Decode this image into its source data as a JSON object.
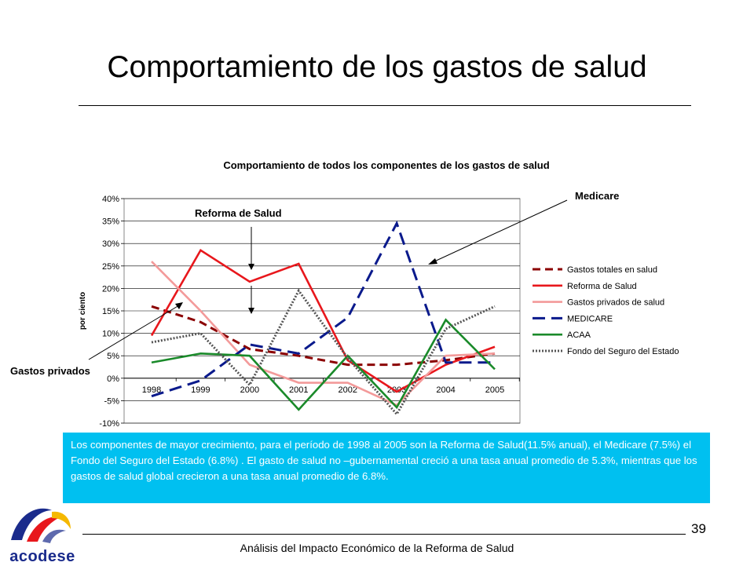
{
  "slide": {
    "title": "Comportamiento de los gastos de salud",
    "note": "Los componentes de mayor crecimiento, para el período de 1998 al 2005 son la Reforma de Salud(11.5% anual), el Medicare (7.5%) el Fondo del Seguro del Estado (6.8%) . El gasto de salud no –gubernamental creció a una tasa anual promedio de 5.3%, mientras que los gastos de salud global crecieron a una tasa anual promedio de 6.8%.",
    "page_number": "39",
    "footer": "Análisis del Impacto Económico de la Reforma de Salud",
    "logo_text": "acodese"
  },
  "chart_data": {
    "type": "line",
    "title": "Comportamiento de todos los componentes de los gastos de salud",
    "ylabel": "por ciento",
    "xlabel": "",
    "categories": [
      "1998",
      "1999",
      "2000",
      "2001",
      "2002",
      "2003",
      "2004",
      "2005"
    ],
    "y_ticks": [
      "40%",
      "35%",
      "30%",
      "25%",
      "20%",
      "15%",
      "10%",
      "5%",
      "0%",
      "-5%",
      "-10%"
    ],
    "ylim": [
      -10,
      40
    ],
    "grid": true,
    "legend_position": "right",
    "series": [
      {
        "name": "Gastos totales en salud",
        "color": "#8b0000",
        "style": "dash",
        "values": [
          16,
          12.5,
          6.5,
          5,
          3,
          3,
          4,
          5.5
        ]
      },
      {
        "name": "Reforma de Salud",
        "color": "#e8171c",
        "style": "solid",
        "values": [
          9.5,
          28.5,
          21.5,
          25.5,
          4,
          -3,
          3,
          7
        ]
      },
      {
        "name": "Gastos privados de salud",
        "color": "#f39a9a",
        "style": "solid",
        "values": [
          26,
          15,
          3,
          -1,
          -1,
          -6,
          5,
          5.5
        ]
      },
      {
        "name": "MEDICARE",
        "color": "#0a1a8c",
        "style": "longdash",
        "values": [
          -4,
          -0.5,
          7.5,
          5.5,
          13.5,
          34.5,
          3.5,
          3.5
        ]
      },
      {
        "name": "ACAA",
        "color": "#1a8a2a",
        "style": "solid",
        "values": [
          3.5,
          5.5,
          5,
          -7,
          5,
          -6.5,
          13,
          2
        ]
      },
      {
        "name": "Fondo del Seguro del Estado",
        "color": "#555555",
        "style": "double",
        "values": [
          8,
          10,
          -1.5,
          19.5,
          4.5,
          -8,
          11,
          16
        ]
      }
    ],
    "annotations": {
      "medicare": "Medicare",
      "reforma": "Reforma de Salud",
      "privados": "Gastos privados"
    }
  }
}
